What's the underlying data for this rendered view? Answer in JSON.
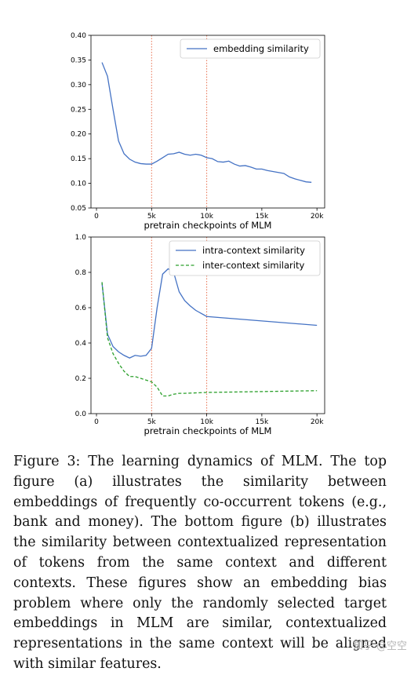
{
  "chart_data": [
    {
      "type": "line",
      "title": "",
      "xlabel": "pretrain checkpoints of MLM",
      "ylabel": "",
      "xlim": [
        -500,
        20700
      ],
      "ylim": [
        0.05,
        0.4
      ],
      "x_ticks": [
        0,
        5000,
        10000,
        15000,
        20000
      ],
      "x_tick_labels": [
        "0",
        "5k",
        "10k",
        "15k",
        "20k"
      ],
      "y_ticks": [
        0.05,
        0.1,
        0.15,
        0.2,
        0.25,
        0.3,
        0.35,
        0.4
      ],
      "y_tick_labels": [
        "0.05",
        "0.10",
        "0.15",
        "0.20",
        "0.25",
        "0.30",
        "0.35",
        "0.40"
      ],
      "vlines": [
        5000,
        10000
      ],
      "legend_position": "top-right",
      "series": [
        {
          "name": "embedding similarity",
          "color": "#4472c4",
          "style": "solid",
          "x": [
            500,
            1000,
            1500,
            2000,
            2500,
            3000,
            3500,
            4000,
            4500,
            5000,
            5500,
            6000,
            6500,
            7000,
            7500,
            8000,
            8500,
            9000,
            9500,
            10000,
            10500,
            11000,
            11500,
            12000,
            12500,
            13000,
            13500,
            14000,
            14500,
            15000,
            15500,
            16000,
            16500,
            17000,
            17500,
            18000,
            18500,
            19000,
            19500
          ],
          "y": [
            0.345,
            0.317,
            0.25,
            0.186,
            0.16,
            0.149,
            0.143,
            0.14,
            0.139,
            0.139,
            0.145,
            0.152,
            0.159,
            0.16,
            0.163,
            0.159,
            0.157,
            0.159,
            0.157,
            0.152,
            0.15,
            0.144,
            0.143,
            0.145,
            0.139,
            0.135,
            0.136,
            0.133,
            0.129,
            0.129,
            0.126,
            0.124,
            0.122,
            0.12,
            0.113,
            0.109,
            0.106,
            0.103,
            0.102
          ]
        }
      ]
    },
    {
      "type": "line",
      "title": "",
      "xlabel": "pretrain checkpoints of MLM",
      "ylabel": "",
      "xlim": [
        -500,
        20700
      ],
      "ylim": [
        0.0,
        1.0
      ],
      "x_ticks": [
        0,
        5000,
        10000,
        15000,
        20000
      ],
      "x_tick_labels": [
        "0",
        "5k",
        "10k",
        "15k",
        "20k"
      ],
      "y_ticks": [
        0.0,
        0.2,
        0.4,
        0.6,
        0.8,
        1.0
      ],
      "y_tick_labels": [
        "0.0",
        "0.2",
        "0.4",
        "0.6",
        "0.8",
        "1.0"
      ],
      "vlines": [
        5000,
        10000
      ],
      "legend_position": "top-right",
      "series": [
        {
          "name": "intra-context similarity",
          "color": "#4472c4",
          "style": "solid",
          "x": [
            500,
            1000,
            1500,
            2000,
            2500,
            3000,
            3500,
            4000,
            4500,
            5000,
            5500,
            6000,
            6500,
            7000,
            7500,
            8000,
            8500,
            9000,
            10000,
            20000
          ],
          "y": [
            0.74,
            0.45,
            0.38,
            0.35,
            0.33,
            0.315,
            0.33,
            0.325,
            0.33,
            0.37,
            0.6,
            0.79,
            0.82,
            0.8,
            0.69,
            0.64,
            0.61,
            0.585,
            0.55,
            0.5
          ]
        },
        {
          "name": "inter-context similarity",
          "color": "#2ca02c",
          "style": "dashed",
          "x": [
            500,
            1000,
            1500,
            2000,
            2500,
            3000,
            3500,
            4000,
            4500,
            5000,
            5500,
            6000,
            6500,
            7000,
            7500,
            8000,
            10000,
            20000
          ],
          "y": [
            0.745,
            0.43,
            0.34,
            0.285,
            0.24,
            0.21,
            0.21,
            0.2,
            0.19,
            0.18,
            0.15,
            0.1,
            0.1,
            0.11,
            0.115,
            0.115,
            0.12,
            0.13
          ]
        }
      ]
    }
  ],
  "caption": "Figure 3: The learning dynamics of MLM. The top figure (a) illustrates the similarity between embeddings of frequently co-occurrent tokens (e.g., bank and money). The bottom figure (b) illustrates the similarity between contextualized representation of tokens from the same context and different contexts. These figures show an embedding bias problem where only the randomly selected target embeddings in MLM are similar, contextualized representations in the same context will be aligned with similar features.",
  "watermark": "知乎 @空空"
}
